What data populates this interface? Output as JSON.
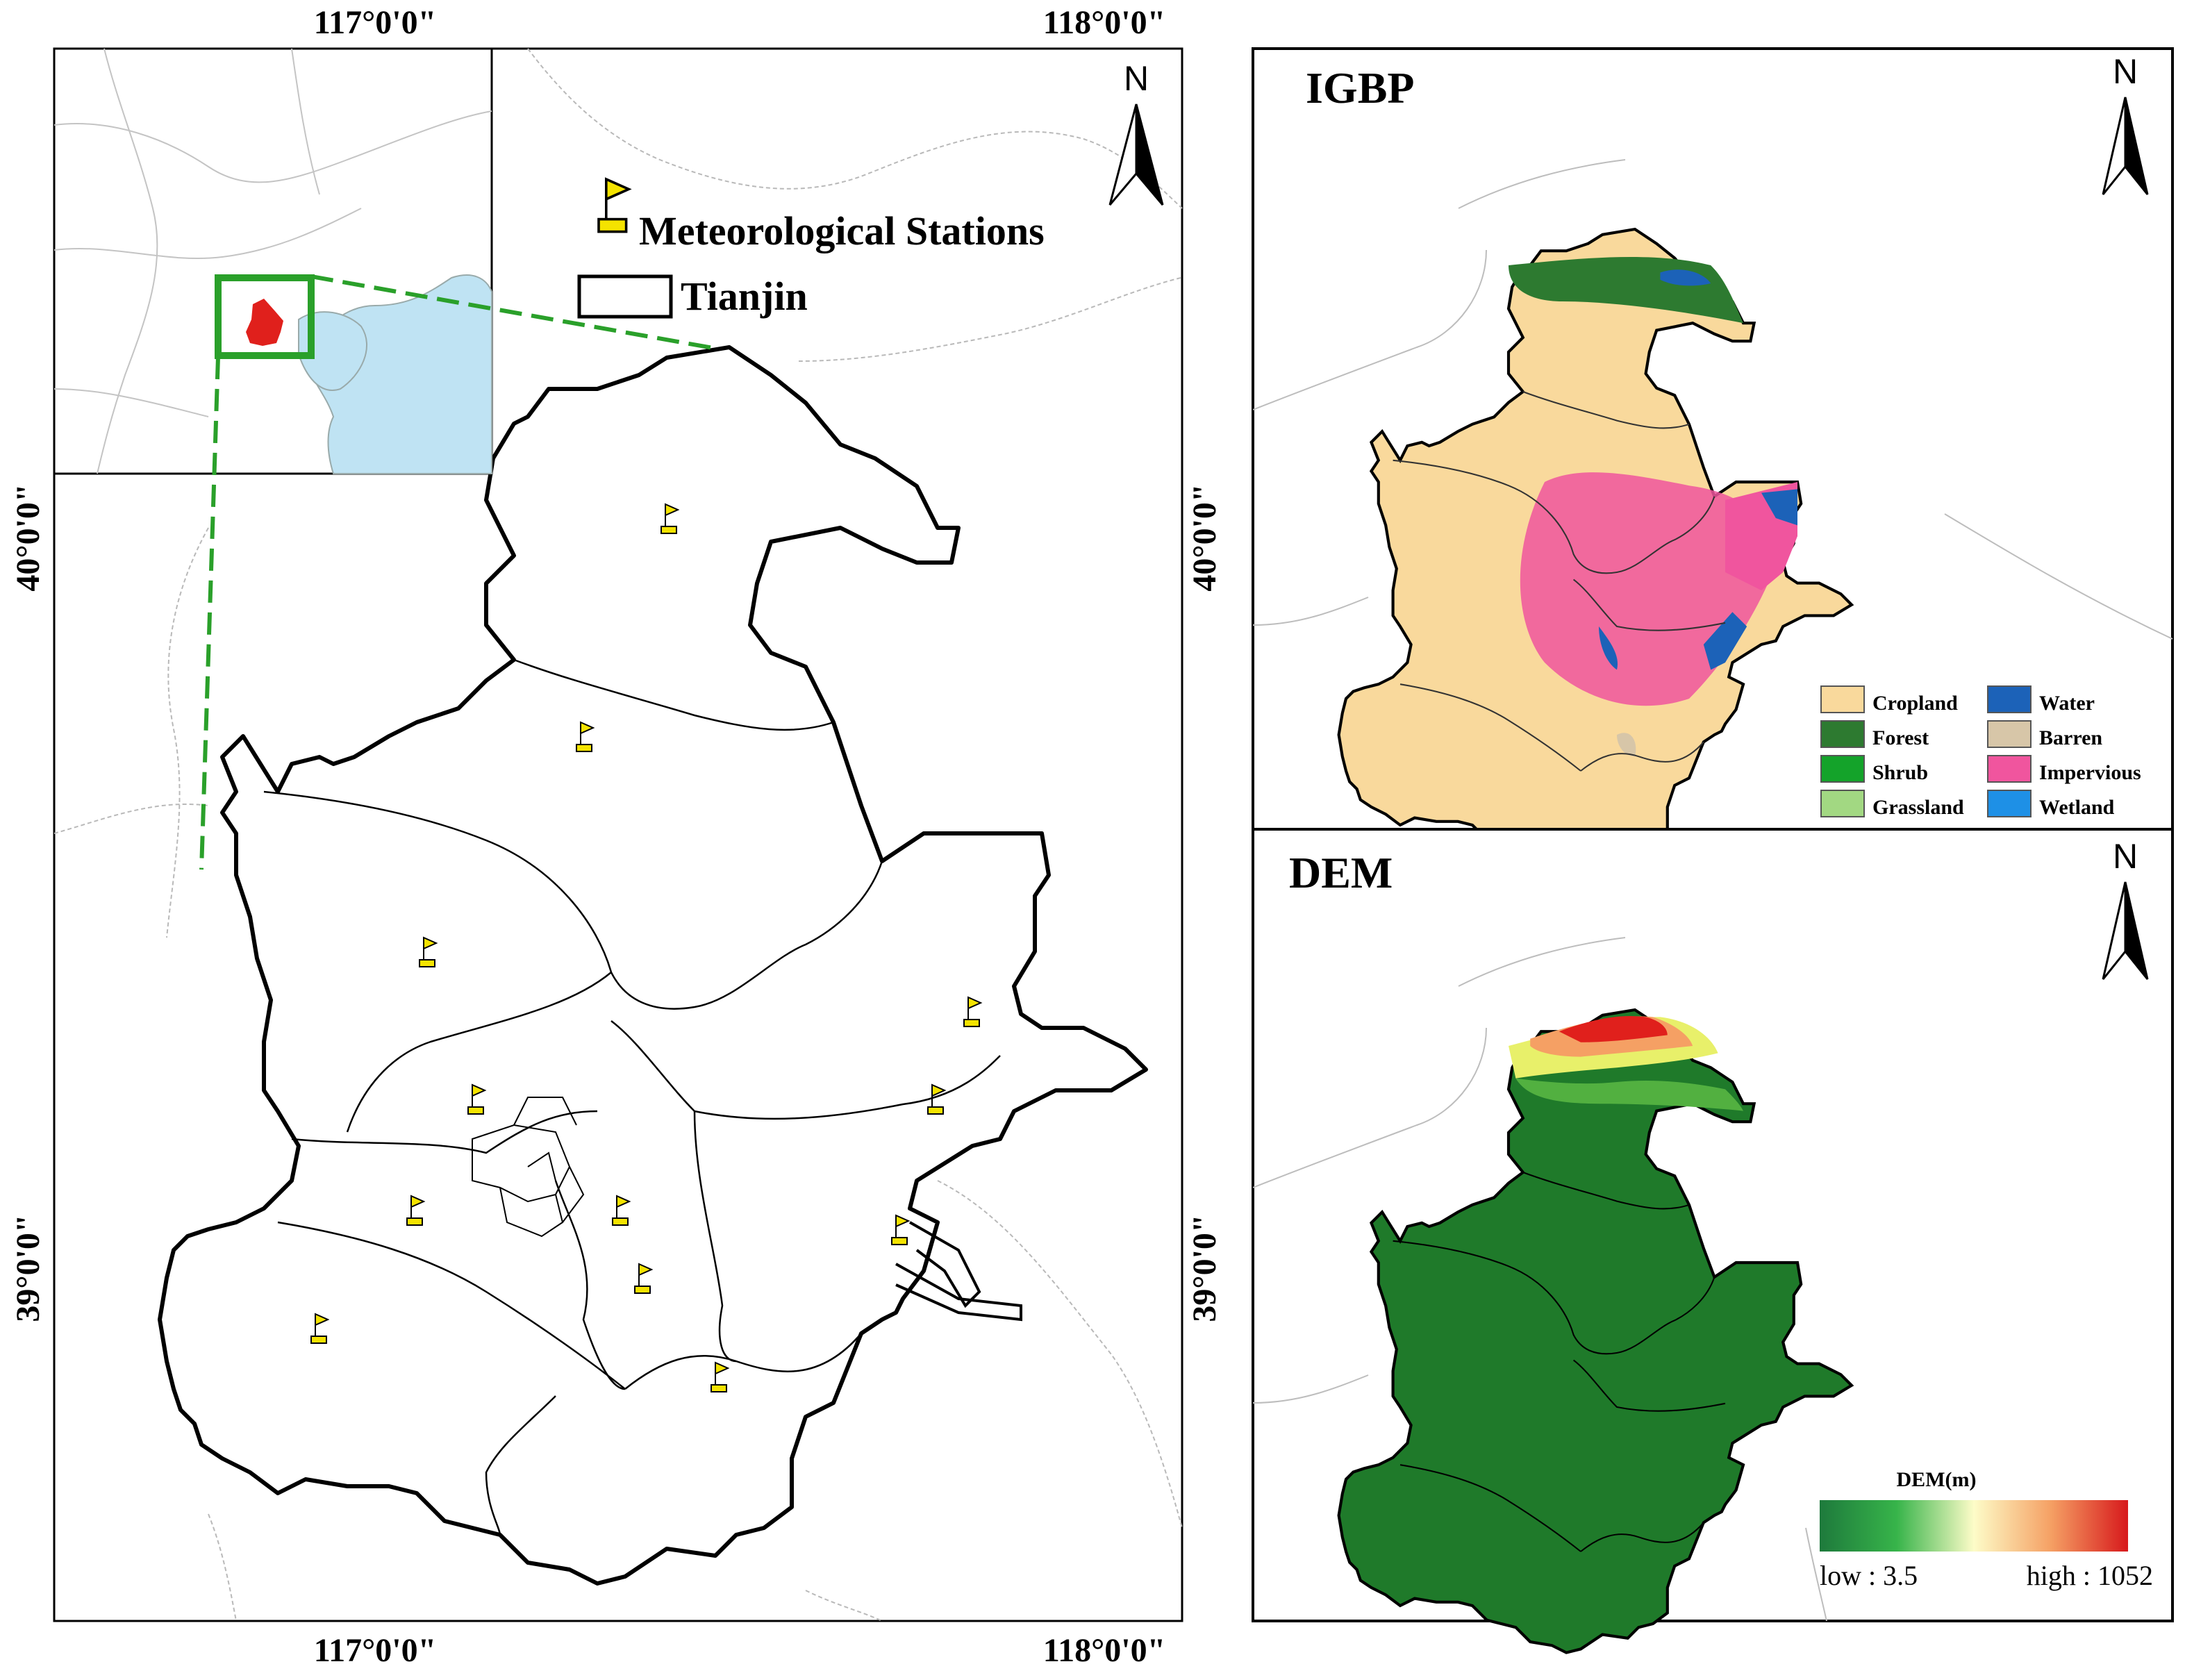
{
  "main_map": {
    "coords": {
      "top": [
        "117°0'0\"",
        "118°0'0\""
      ],
      "bottom": [
        "117°0'0\"",
        "118°0'0\""
      ],
      "left": [
        "40°0'0\"",
        "39°0'0\""
      ],
      "right": [
        "40°0'0\"",
        "39°0'0\""
      ]
    },
    "north_letter": "N",
    "legend": {
      "stations_label": "Meteorological Stations",
      "boundary_label": "Tianjin"
    }
  },
  "igbp_panel": {
    "title": "IGBP",
    "north_letter": "N",
    "legend": [
      {
        "label": "Cropland",
        "color": "#f9d99c"
      },
      {
        "label": "Water",
        "color": "#1c62b8"
      },
      {
        "label": "Forest",
        "color": "#2d7a30"
      },
      {
        "label": "Barren",
        "color": "#d7c6a8"
      },
      {
        "label": "Shrub",
        "color": "#14a32a"
      },
      {
        "label": "Impervious",
        "color": "#f0559e"
      },
      {
        "label": "Grassland",
        "color": "#a2d882"
      },
      {
        "label": "Wetland",
        "color": "#1e90e6"
      }
    ]
  },
  "dem_panel": {
    "title": "DEM",
    "north_letter": "N",
    "legend": {
      "title": "DEM(m)",
      "low_label": "low : 3.5",
      "high_label": "high : 1052"
    }
  },
  "colors": {
    "inset_water": "#bfe3f3",
    "tianjin_inset": "#e0201c",
    "callout_green": "#2aa02a",
    "station_flag": "#f4e300",
    "dem_green": "#1f7a2a"
  }
}
